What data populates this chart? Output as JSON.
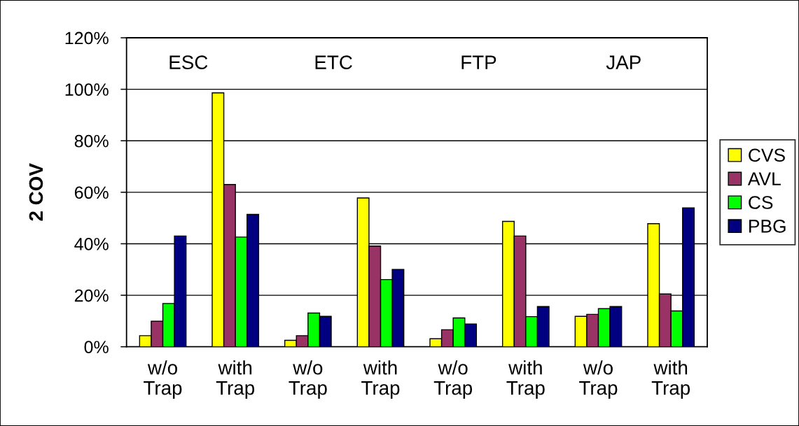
{
  "chart_data": {
    "type": "bar",
    "categories": [
      "w/o\nTrap",
      "with\nTrap",
      "w/o\nTrap",
      "with\nTrap",
      "w/o\nTrap",
      "with\nTrap",
      "w/o\nTrap",
      "with\nTrap"
    ],
    "ylabel": "2 COV",
    "ylim": [
      0,
      120
    ],
    "yticks": [
      {
        "value": 0,
        "label": "0%"
      },
      {
        "value": 20,
        "label": "20%"
      },
      {
        "value": 40,
        "label": "40%"
      },
      {
        "value": 60,
        "label": "60%"
      },
      {
        "value": 80,
        "label": "80%"
      },
      {
        "value": 100,
        "label": "100%"
      },
      {
        "value": 120,
        "label": "120%"
      }
    ],
    "grid": "y",
    "legend": "right",
    "annotations": [
      "ESC",
      "ETC",
      "FTP",
      "JAP"
    ],
    "series": [
      {
        "name": "CVS",
        "color": "#ffff00",
        "values": [
          4.3,
          98.6,
          2.5,
          57.8,
          3.1,
          48.7,
          11.8,
          47.8
        ]
      },
      {
        "name": "AVL",
        "color": "#993366",
        "values": [
          9.9,
          63.0,
          4.3,
          39.1,
          6.6,
          43.0,
          12.6,
          20.5
        ]
      },
      {
        "name": "CS",
        "color": "#00ff00",
        "values": [
          16.8,
          42.6,
          13.1,
          26.1,
          11.2,
          11.7,
          14.8,
          13.9
        ]
      },
      {
        "name": "PBG",
        "color": "#000080",
        "values": [
          43.0,
          51.4,
          11.8,
          30.0,
          8.8,
          15.6,
          15.6,
          53.9
        ]
      }
    ]
  }
}
